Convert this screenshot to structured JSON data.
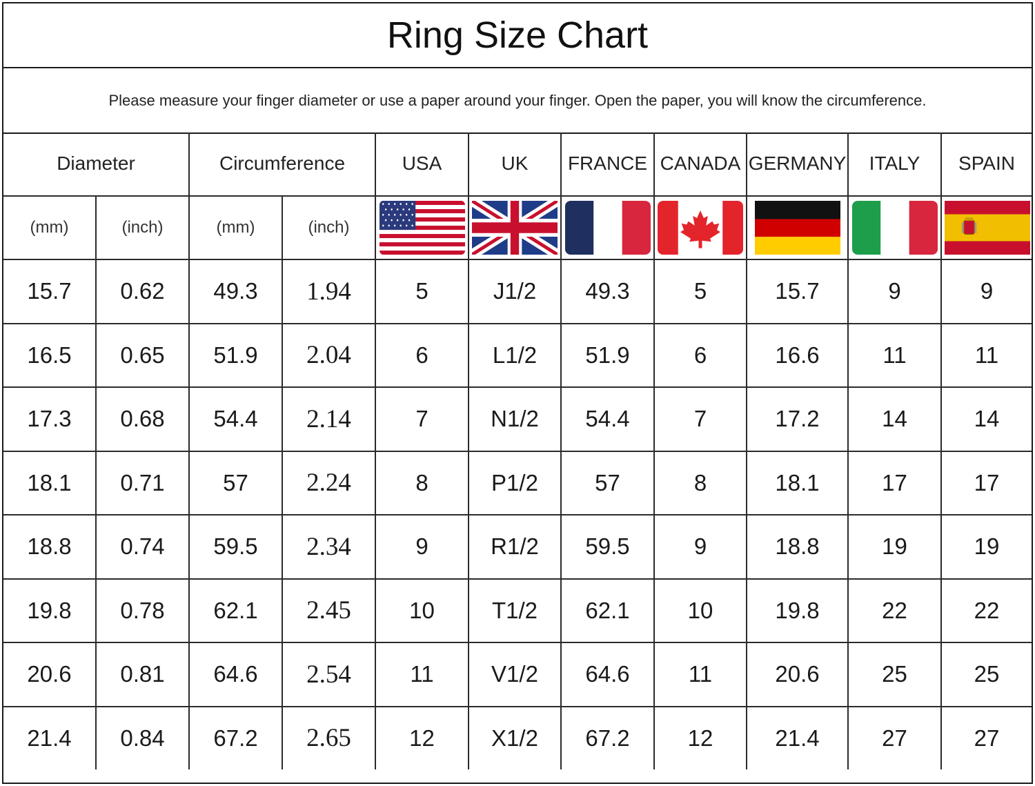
{
  "title": "Ring Size Chart",
  "note": "Please measure your finger diameter or use a paper around your finger. Open the paper, you will know the circumference.",
  "headers": {
    "diameter": "Diameter",
    "circumference": "Circumference",
    "usa": "USA",
    "uk": "UK",
    "france": "FRANCE",
    "canada": "CANADA",
    "germany": "GERMANY",
    "italy": "ITALY",
    "spain": "SPAIN"
  },
  "units": {
    "diameter_mm": "(mm)",
    "diameter_inch": "(inch)",
    "circumference_mm": "(mm)",
    "circumference_inch": "(inch)"
  },
  "flags": [
    "usa-flag-icon",
    "uk-flag-icon",
    "france-flag-icon",
    "canada-flag-icon",
    "germany-flag-icon",
    "italy-flag-icon",
    "spain-flag-icon"
  ],
  "rows": [
    [
      "15.7",
      "0.62",
      "49.3",
      "1.94",
      "5",
      "J1/2",
      "49.3",
      "5",
      "15.7",
      "9",
      "9"
    ],
    [
      "16.5",
      "0.65",
      "51.9",
      "2.04",
      "6",
      "L1/2",
      "51.9",
      "6",
      "16.6",
      "11",
      "11"
    ],
    [
      "17.3",
      "0.68",
      "54.4",
      "2.14",
      "7",
      "N1/2",
      "54.4",
      "7",
      "17.2",
      "14",
      "14"
    ],
    [
      "18.1",
      "0.71",
      "57",
      "2.24",
      "8",
      "P1/2",
      "57",
      "8",
      "18.1",
      "17",
      "17"
    ],
    [
      "18.8",
      "0.74",
      "59.5",
      "2.34",
      "9",
      "R1/2",
      "59.5",
      "9",
      "18.8",
      "19",
      "19"
    ],
    [
      "19.8",
      "0.78",
      "62.1",
      "2.45",
      "10",
      "T1/2",
      "62.1",
      "10",
      "19.8",
      "22",
      "22"
    ],
    [
      "20.6",
      "0.81",
      "64.6",
      "2.54",
      "11",
      "V1/2",
      "64.6",
      "11",
      "20.6",
      "25",
      "25"
    ],
    [
      "21.4",
      "0.84",
      "67.2",
      "2.65",
      "12",
      "X1/2",
      "67.2",
      "12",
      "21.4",
      "27",
      "27"
    ]
  ]
}
